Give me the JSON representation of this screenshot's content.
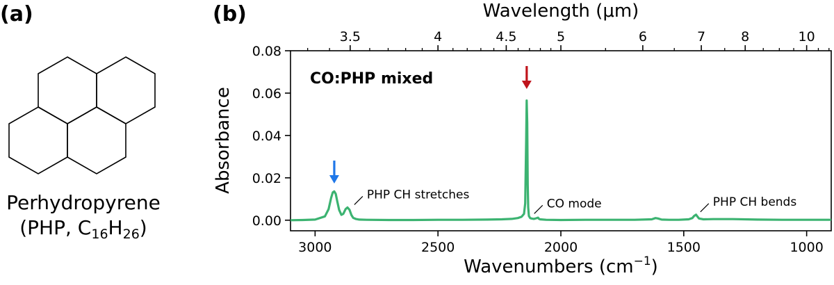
{
  "panel_a": {
    "label": "(a)",
    "molecule_name": "Perhydropyrene",
    "formula_prefix": "(PHP, C",
    "formula_sub1": "16",
    "formula_mid": "H",
    "formula_sub2": "26",
    "formula_suffix": ")"
  },
  "panel_b": {
    "label": "(b)"
  },
  "colors": {
    "spectrum": "#3cb371",
    "red_arrow": "#c0141c",
    "blue_arrow": "#1f77e8",
    "axis": "#000000"
  },
  "chart_data": {
    "type": "line",
    "title": "CO:PHP mixed",
    "xlabel_prefix": "Wavenumbers (cm",
    "xlabel_sup": "−1",
    "xlabel_suffix": ")",
    "ylabel": "Absorbance",
    "top_xlabel": "Wavelength (μm)",
    "xlim": [
      3100,
      900
    ],
    "ylim": [
      -0.005,
      0.08
    ],
    "x_ticks": [
      3000,
      2500,
      2000,
      1500,
      1000
    ],
    "x_tick_labels": [
      "3000",
      "2500",
      "2000",
      "1500",
      "1000"
    ],
    "y_ticks": [
      0.0,
      0.02,
      0.04,
      0.06,
      0.08
    ],
    "y_tick_labels": [
      "0.00",
      "0.02",
      "0.04",
      "0.06",
      "0.08"
    ],
    "top_ticks_um": [
      3.5,
      4,
      4.5,
      5,
      6,
      7,
      8,
      10
    ],
    "top_tick_labels": [
      "3.5",
      "4",
      "4.5",
      "5",
      "6",
      "7",
      "8",
      "10"
    ],
    "top_minor_ticks_um": [
      3.3,
      3.4,
      3.6,
      3.7,
      3.8,
      3.9,
      4.1,
      4.2,
      4.3,
      4.4,
      4.6,
      4.7,
      4.8,
      4.9,
      5.5,
      6.5,
      7.5,
      8.5,
      9,
      9.5,
      10.5,
      11
    ],
    "series": [
      {
        "name": "CO:PHP mixed",
        "x": [
          3100,
          3050,
          3000,
          2960,
          2945,
          2935,
          2928,
          2922,
          2916,
          2910,
          2902,
          2893,
          2885,
          2876,
          2868,
          2860,
          2852,
          2845,
          2835,
          2820,
          2790,
          2700,
          2600,
          2500,
          2400,
          2300,
          2240,
          2200,
          2175,
          2160,
          2150,
          2145,
          2141,
          2139,
          2137,
          2135,
          2133,
          2130,
          2125,
          2120,
          2110,
          2100,
          2093,
          2090,
          2085,
          2060,
          2000,
          1900,
          1800,
          1700,
          1630,
          1615,
          1605,
          1590,
          1560,
          1520,
          1480,
          1465,
          1458,
          1450,
          1445,
          1438,
          1420,
          1380,
          1300,
          1200,
          1100,
          1000,
          900
        ],
        "y": [
          0.0,
          0.0001,
          0.0003,
          0.0018,
          0.0052,
          0.0105,
          0.0131,
          0.0136,
          0.0124,
          0.009,
          0.0048,
          0.0025,
          0.003,
          0.0052,
          0.006,
          0.0049,
          0.0024,
          0.0011,
          0.0006,
          0.0003,
          0.0002,
          0.0001,
          0.0001,
          0.0002,
          0.0002,
          0.0003,
          0.0004,
          0.0006,
          0.001,
          0.0016,
          0.003,
          0.008,
          0.038,
          0.0565,
          0.046,
          0.017,
          0.006,
          0.002,
          0.001,
          0.0008,
          0.0006,
          0.0009,
          0.0012,
          0.0007,
          0.0004,
          0.0002,
          0.0001,
          0.0002,
          0.0002,
          0.0002,
          0.0004,
          0.001,
          0.0008,
          0.0003,
          0.0002,
          0.0002,
          0.0004,
          0.001,
          0.002,
          0.0026,
          0.0018,
          0.0008,
          0.0004,
          0.0005,
          0.0005,
          0.0003,
          0.0002,
          0.0002,
          0.0002
        ]
      }
    ],
    "annotations": [
      {
        "text": "PHP CH stretches",
        "x": 2860,
        "y": 0.006
      },
      {
        "text": "CO mode",
        "x": 2128,
        "y": 0.0018
      },
      {
        "text": "PHP CH bends",
        "x": 1452,
        "y": 0.0026
      }
    ],
    "arrows": [
      {
        "name": "co-peak-arrow",
        "color": "red",
        "x": 2139
      },
      {
        "name": "ch-stretch-arrow",
        "color": "blue",
        "x": 2922
      }
    ]
  }
}
